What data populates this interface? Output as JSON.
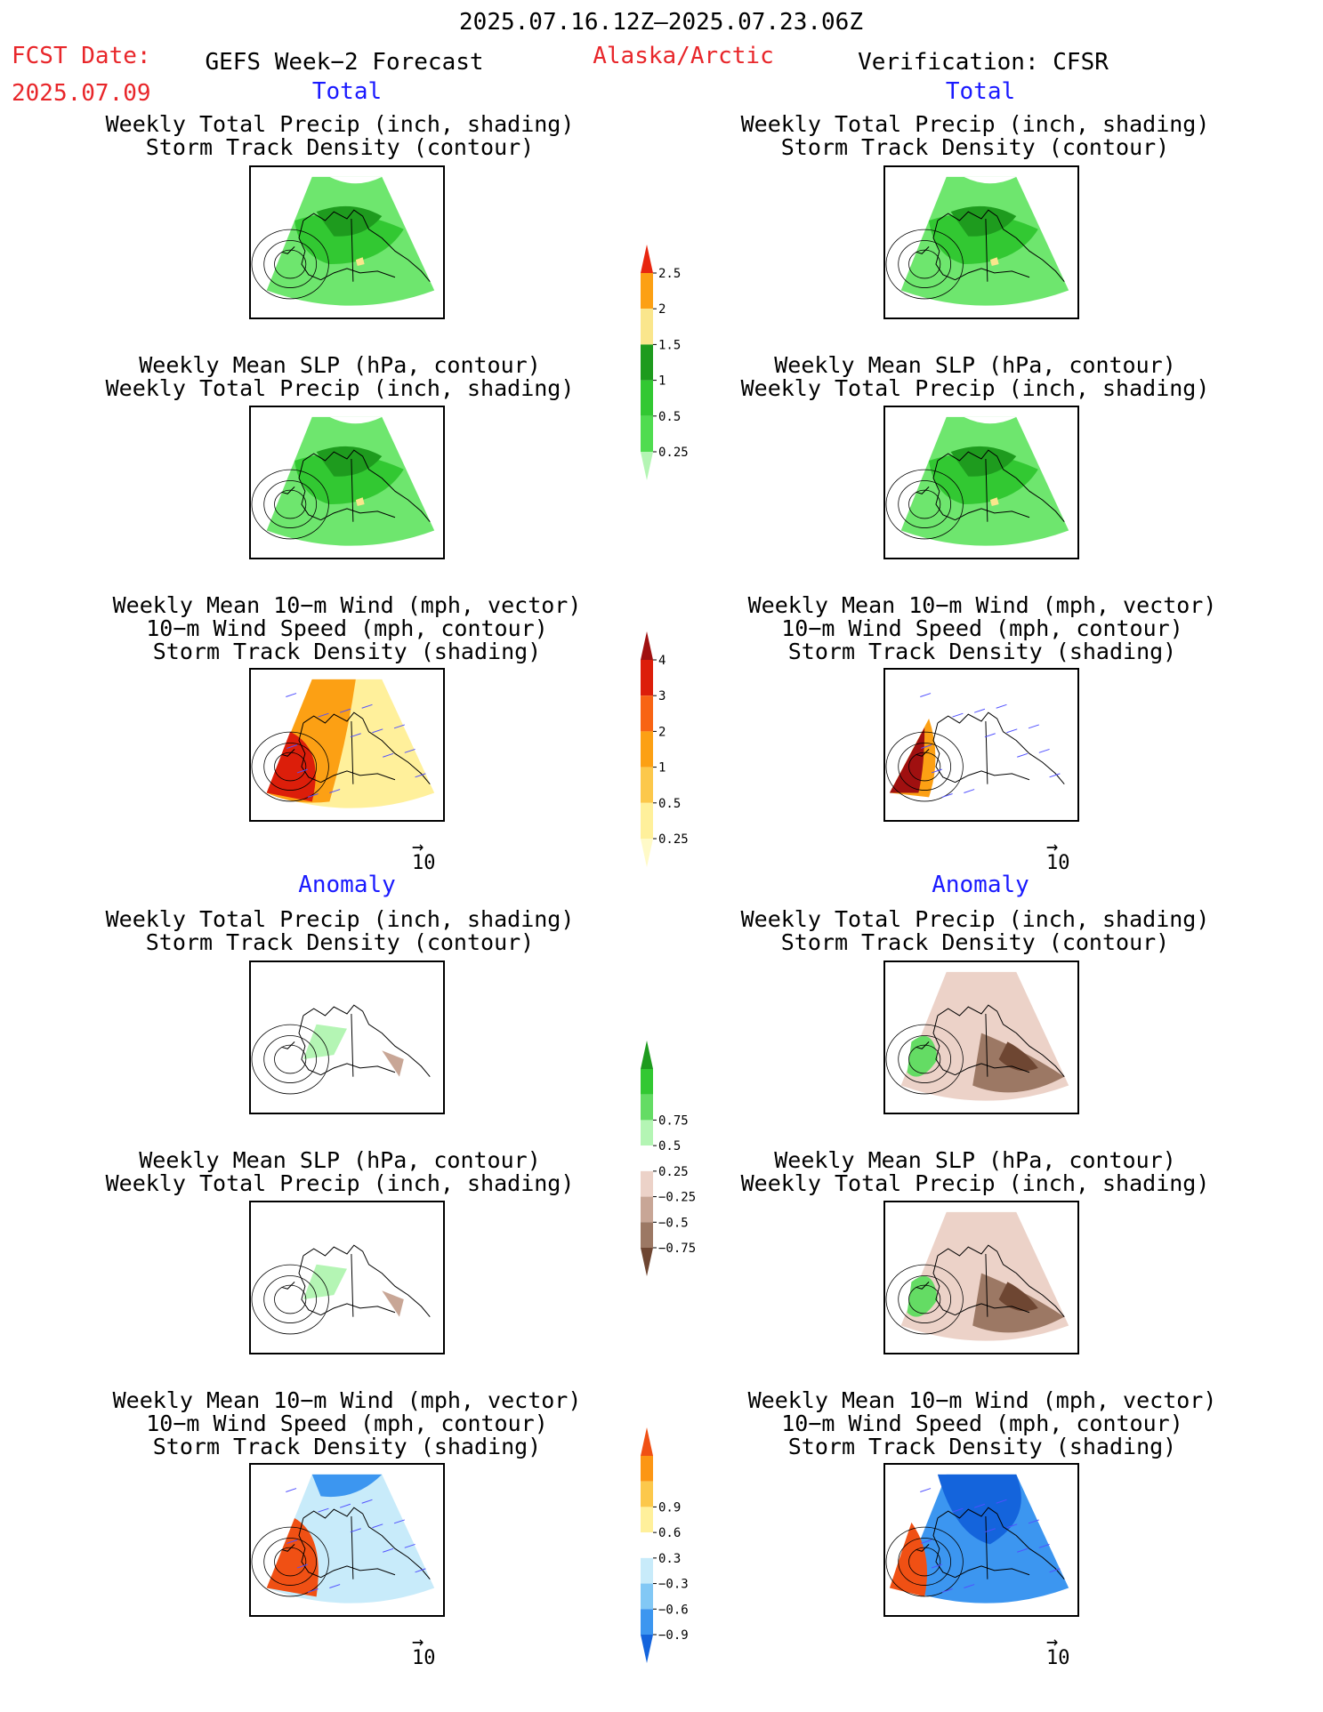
{
  "header": {
    "date_range": "2025.07.16.12Z–2025.07.23.06Z",
    "fcst_label": "FCST Date:",
    "fcst_date": "2025.07.09",
    "left_title": "GEFS Week−2 Forecast",
    "region": "Alaska/Arctic",
    "right_title": "Verification: CFSR"
  },
  "sections": {
    "total": "Total",
    "anomaly": "Anomaly"
  },
  "panel_titles": {
    "precip_storm": [
      "Weekly Total Precip (inch, shading)",
      "Storm Track Density (contour)"
    ],
    "slp_precip": [
      "Weekly Mean SLP (hPa, contour)",
      "Weekly Total Precip (inch, shading)"
    ],
    "wind": [
      "Weekly Mean 10−m Wind (mph, vector)",
      "10−m Wind Speed (mph, contour)",
      "Storm Track Density (shading)"
    ]
  },
  "vector_reference": "10",
  "colors": {
    "text_red": "#e8262a",
    "text_blue": "#1a1aff",
    "land_outline": "#000000"
  },
  "chart_data": [
    {
      "type": "heatmap",
      "name": "colorbar-total-precip",
      "levels": [
        "0.25",
        "0.5",
        "1",
        "1.5",
        "2",
        "2.5"
      ],
      "colors": [
        "#b4f5b4",
        "#50dc50",
        "#32c832",
        "#1e9b1e",
        "#fae68c",
        "#fca014",
        "#e8260f"
      ]
    },
    {
      "type": "heatmap",
      "name": "colorbar-total-storm",
      "levels": [
        "0.25",
        "0.5",
        "1",
        "2",
        "3",
        "4"
      ],
      "colors": [
        "#fffac8",
        "#fff09b",
        "#fcc84b",
        "#fca014",
        "#f86414",
        "#dc1e0a",
        "#a01010"
      ]
    },
    {
      "type": "heatmap",
      "name": "colorbar-anom-precip",
      "levels": [
        "−0.75",
        "−0.5",
        "−0.25",
        "0.25",
        "0.5",
        "0.75"
      ],
      "colors": [
        "#6e4632",
        "#9c7864",
        "#c8a696",
        "#ecd2c8",
        "#ffffff",
        "#b4f5b4",
        "#64dc64",
        "#32c832",
        "#1e9b1e"
      ]
    },
    {
      "type": "heatmap",
      "name": "colorbar-anom-storm",
      "levels": [
        "−0.9",
        "−0.6",
        "−0.3",
        "0.3",
        "0.6",
        "0.9"
      ],
      "colors": [
        "#1464dc",
        "#3c96f0",
        "#82c8f5",
        "#c8ebfa",
        "#ffffff",
        "#fff09b",
        "#fcc84b",
        "#fc9614",
        "#f05014"
      ]
    }
  ]
}
